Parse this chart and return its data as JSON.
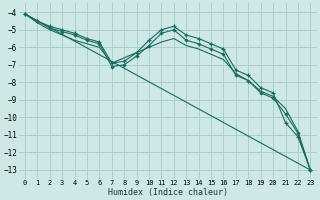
{
  "xlabel": "Humidex (Indice chaleur)",
  "bg_color": "#cde8e5",
  "grid_color": "#aacfcc",
  "line_color": "#1a6b60",
  "xlim": [
    -0.5,
    23.5
  ],
  "ylim": [
    -13.5,
    -3.5
  ],
  "yticks": [
    -4,
    -5,
    -6,
    -7,
    -8,
    -9,
    -10,
    -11,
    -12,
    -13
  ],
  "xticks": [
    0,
    1,
    2,
    3,
    4,
    5,
    6,
    7,
    8,
    9,
    10,
    11,
    12,
    13,
    14,
    15,
    16,
    17,
    18,
    19,
    20,
    21,
    22,
    23
  ],
  "series": [
    {
      "x": [
        0,
        1,
        2,
        3,
        4,
        5,
        6,
        7,
        8,
        9,
        10,
        11,
        12,
        13,
        14,
        15,
        16,
        17,
        18,
        19,
        20,
        21,
        22,
        23
      ],
      "y": [
        -4.1,
        -4.5,
        -4.8,
        -5.0,
        -5.2,
        -5.5,
        -5.7,
        -6.9,
        -6.8,
        -6.3,
        -5.6,
        -5.0,
        -4.8,
        -5.3,
        -5.5,
        -5.8,
        -6.1,
        -7.3,
        -7.6,
        -8.3,
        -8.6,
        -10.3,
        -11.1,
        -13.0
      ],
      "marker": "+"
    },
    {
      "x": [
        0,
        1,
        2,
        3,
        4,
        5,
        6,
        7,
        8,
        9,
        10,
        11,
        12,
        13,
        14,
        15,
        16,
        17,
        18,
        19,
        20,
        21,
        22,
        23
      ],
      "y": [
        -4.1,
        -4.5,
        -4.9,
        -5.1,
        -5.3,
        -5.6,
        -5.8,
        -7.1,
        -7.0,
        -6.5,
        -5.9,
        -5.2,
        -5.0,
        -5.6,
        -5.8,
        -6.1,
        -6.4,
        -7.6,
        -7.9,
        -8.6,
        -8.9,
        -9.8,
        -10.9,
        -13.0
      ],
      "marker": "D"
    },
    {
      "x": [
        0,
        1,
        2,
        3,
        4,
        5,
        6,
        7,
        8,
        9,
        10,
        11,
        12,
        13,
        14,
        15,
        16,
        17,
        18,
        19,
        20,
        21,
        22,
        23
      ],
      "y": [
        -4.1,
        -4.6,
        -5.0,
        -5.3,
        -5.6,
        -5.8,
        -6.0,
        -6.9,
        -6.6,
        -6.3,
        -6.0,
        -5.7,
        -5.5,
        -5.9,
        -6.1,
        -6.4,
        -6.7,
        -7.5,
        -7.9,
        -8.5,
        -8.8,
        -9.5,
        -10.8,
        -13.0
      ],
      "marker": null
    },
    {
      "x": [
        0,
        23
      ],
      "y": [
        -4.1,
        -13.0
      ],
      "marker": null
    }
  ]
}
